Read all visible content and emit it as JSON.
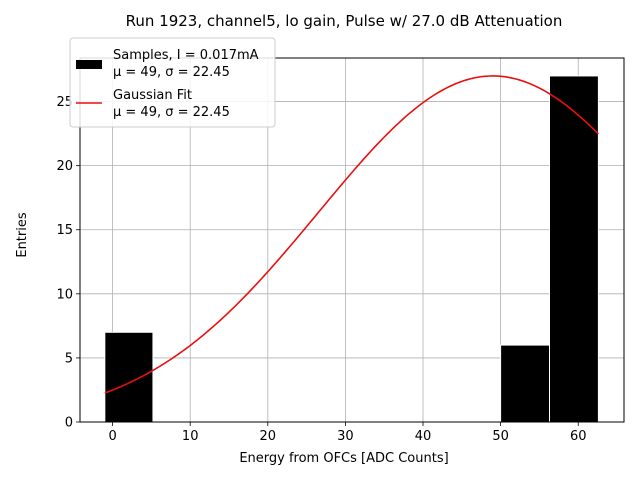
{
  "chart_data": {
    "type": "bar",
    "title": "Run 1923, channel5, lo gain, Pulse w/ 27.0 dB Attenuation",
    "xlabel": "Energy from OFCs [ADC Counts]",
    "ylabel": "Entries",
    "xlim": [
      -4.2,
      65.9
    ],
    "ylim": [
      0,
      28.4
    ],
    "xticks": [
      0,
      10,
      20,
      30,
      40,
      50,
      60
    ],
    "yticks": [
      0,
      5,
      10,
      15,
      20,
      25
    ],
    "xtick_labels": [
      "0",
      "10",
      "20",
      "30",
      "40",
      "50",
      "60"
    ],
    "ytick_labels": [
      "0",
      "5",
      "10",
      "15",
      "20",
      "25"
    ],
    "grid": true,
    "histogram": {
      "name": "Samples, I = 0.017mA",
      "stats": "μ = 49, σ = 22.45",
      "color": "#000000",
      "edge_color": "#ffffff",
      "bins": [
        {
          "x0": -1.0,
          "x1": 5.2,
          "count": 7
        },
        {
          "x0": 5.2,
          "x1": 11.5,
          "count": 0
        },
        {
          "x0": 11.5,
          "x1": 17.7,
          "count": 0
        },
        {
          "x0": 17.7,
          "x1": 24.0,
          "count": 0
        },
        {
          "x0": 24.0,
          "x1": 30.2,
          "count": 0
        },
        {
          "x0": 30.2,
          "x1": 36.4,
          "count": 0
        },
        {
          "x0": 36.4,
          "x1": 42.7,
          "count": 0
        },
        {
          "x0": 42.7,
          "x1": 48.9,
          "count": 0
        },
        {
          "x0": 50.0,
          "x1": 56.3,
          "count": 6
        },
        {
          "x0": 56.3,
          "x1": 62.6,
          "count": 27
        }
      ]
    },
    "fit": {
      "name": "Gaussian Fit",
      "stats": "μ = 49, σ = 22.45",
      "color": "#e8100f",
      "amplitude": 27.0,
      "mu": 49,
      "sigma": 22.45,
      "x_range": [
        -1.0,
        62.6
      ]
    },
    "legend_position": "upper-left"
  }
}
